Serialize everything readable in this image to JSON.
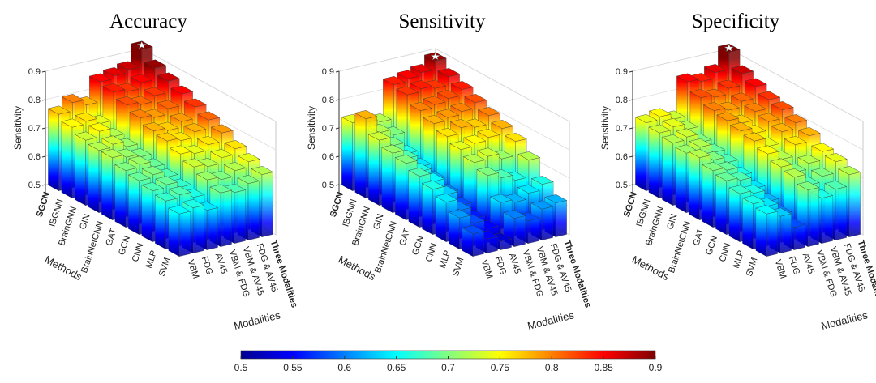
{
  "chart_data": [
    {
      "type": "bar3d",
      "title": "Accuracy",
      "zlabel": "Sensitivity",
      "xlabel": "Methods",
      "ylabel": "Modalities",
      "methods": [
        "SGCN",
        "IBGNN",
        "BrainGNN",
        "GIN",
        "BrainNetCNN",
        "GAT",
        "GCN",
        "CNN",
        "MLP",
        "SVM"
      ],
      "modalities": [
        "VBM",
        "FDG",
        "AV45",
        "VBM & FDG",
        "VBM & AV45",
        "FDG & AV45",
        "Three Modalities"
      ],
      "values": [
        [
          0.77,
          0.8,
          0.78,
          0.85,
          0.86,
          0.87,
          0.93
        ],
        [
          0.75,
          0.76,
          0.74,
          0.84,
          0.83,
          0.85,
          0.89
        ],
        [
          0.73,
          0.75,
          0.72,
          0.82,
          0.81,
          0.83,
          0.87
        ],
        [
          0.72,
          0.73,
          0.71,
          0.8,
          0.79,
          0.81,
          0.85
        ],
        [
          0.72,
          0.71,
          0.7,
          0.78,
          0.77,
          0.79,
          0.83
        ],
        [
          0.7,
          0.71,
          0.69,
          0.77,
          0.76,
          0.78,
          0.81
        ],
        [
          0.69,
          0.7,
          0.68,
          0.75,
          0.74,
          0.76,
          0.79
        ],
        [
          0.68,
          0.69,
          0.67,
          0.73,
          0.72,
          0.74,
          0.76
        ],
        [
          0.67,
          0.68,
          0.66,
          0.71,
          0.7,
          0.72,
          0.74
        ],
        [
          0.65,
          0.66,
          0.64,
          0.69,
          0.68,
          0.7,
          0.72
        ]
      ],
      "zlim": [
        0.5,
        0.9
      ],
      "zticks": [
        0.5,
        0.6,
        0.7,
        0.8,
        0.9
      ],
      "grid": true
    },
    {
      "type": "bar3d",
      "title": "Sensitivity",
      "zlabel": "Sensitivity",
      "xlabel": "Methods",
      "ylabel": "Modalities",
      "methods": [
        "SGCN",
        "IBGNN",
        "BrainGNN",
        "GIN",
        "BrainNetCNN",
        "GAT",
        "GCN",
        "CNN",
        "MLP",
        "SVM"
      ],
      "modalities": [
        "VBM",
        "FDG",
        "AV45",
        "VBM & FDG",
        "VBM & AV45",
        "FDG & AV45",
        "Three Modalities"
      ],
      "values": [
        [
          0.74,
          0.73,
          0.72,
          0.84,
          0.85,
          0.86,
          0.89
        ],
        [
          0.78,
          0.72,
          0.7,
          0.83,
          0.84,
          0.83,
          0.86
        ],
        [
          0.73,
          0.7,
          0.66,
          0.8,
          0.81,
          0.82,
          0.84
        ],
        [
          0.71,
          0.68,
          0.64,
          0.78,
          0.79,
          0.8,
          0.82
        ],
        [
          0.7,
          0.66,
          0.62,
          0.76,
          0.78,
          0.77,
          0.8
        ],
        [
          0.68,
          0.65,
          0.6,
          0.74,
          0.75,
          0.76,
          0.78
        ],
        [
          0.66,
          0.63,
          0.58,
          0.72,
          0.73,
          0.71,
          0.76
        ],
        [
          0.64,
          0.6,
          0.56,
          0.7,
          0.68,
          0.66,
          0.72
        ],
        [
          0.61,
          0.58,
          0.55,
          0.63,
          0.62,
          0.64,
          0.66
        ],
        [
          0.58,
          0.55,
          0.53,
          0.6,
          0.58,
          0.61,
          0.62
        ]
      ],
      "zlim": [
        0.5,
        0.9
      ],
      "zticks": [
        0.5,
        0.6,
        0.7,
        0.8,
        0.9
      ],
      "grid": true
    },
    {
      "type": "bar3d",
      "title": "Specificity",
      "zlabel": "Sensitivity",
      "xlabel": "Methods",
      "ylabel": "Modalities",
      "methods": [
        "SGCN",
        "IBGNN",
        "BrainGNN",
        "GIN",
        "BrainNetCNN",
        "GAT",
        "GCN",
        "CNN",
        "MLP",
        "SVM"
      ],
      "modalities": [
        "VBM",
        "FDG",
        "AV45",
        "VBM & FDG",
        "VBM & AV45",
        "FDG & AV45",
        "Three Modalities"
      ],
      "values": [
        [
          0.74,
          0.75,
          0.73,
          0.85,
          0.84,
          0.86,
          0.92
        ],
        [
          0.73,
          0.74,
          0.72,
          0.82,
          0.81,
          0.83,
          0.87
        ],
        [
          0.72,
          0.73,
          0.7,
          0.8,
          0.79,
          0.81,
          0.85
        ],
        [
          0.71,
          0.72,
          0.69,
          0.79,
          0.77,
          0.8,
          0.83
        ],
        [
          0.72,
          0.7,
          0.68,
          0.78,
          0.76,
          0.79,
          0.82
        ],
        [
          0.7,
          0.69,
          0.66,
          0.77,
          0.74,
          0.78,
          0.8
        ],
        [
          0.69,
          0.68,
          0.64,
          0.75,
          0.72,
          0.76,
          0.78
        ],
        [
          0.67,
          0.66,
          0.62,
          0.73,
          0.7,
          0.72,
          0.75
        ],
        [
          0.66,
          0.64,
          0.6,
          0.72,
          0.68,
          0.7,
          0.74
        ],
        [
          0.65,
          0.63,
          0.58,
          0.7,
          0.66,
          0.68,
          0.72
        ]
      ],
      "zlim": [
        0.5,
        0.9
      ],
      "zticks": [
        0.5,
        0.6,
        0.7,
        0.8,
        0.9
      ],
      "grid": true
    },
    {
      "type": "colorbar",
      "colormap": "jet",
      "lim": [
        0.5,
        0.9
      ],
      "ticks": [
        0.5,
        0.55,
        0.6,
        0.65,
        0.7,
        0.75,
        0.8,
        0.85,
        0.9
      ]
    }
  ]
}
